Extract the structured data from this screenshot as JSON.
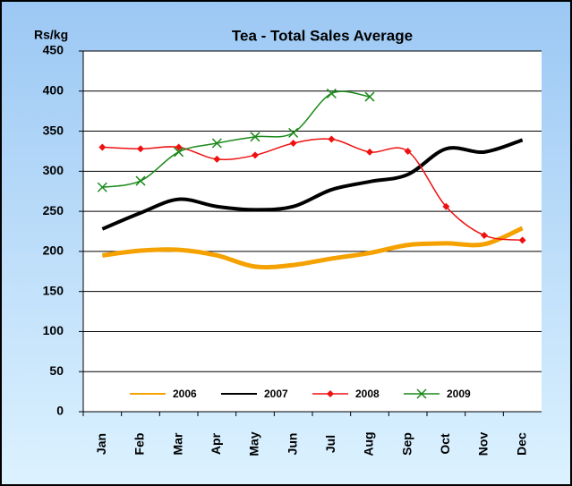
{
  "chart_data": {
    "type": "line",
    "title": "Tea - Total Sales Average",
    "y_label": "Rs/kg",
    "categories": [
      "Jan",
      "Feb",
      "Mar",
      "Apr",
      "May",
      "Jun",
      "Jul",
      "Aug",
      "Sep",
      "Oct",
      "Nov",
      "Dec"
    ],
    "series": [
      {
        "name": "2006",
        "color": "#f5a100",
        "values": [
          195,
          201,
          202,
          195,
          181,
          183,
          191,
          198,
          208,
          210,
          209,
          229
        ]
      },
      {
        "name": "2007",
        "color": "#000000",
        "values": [
          228,
          248,
          265,
          256,
          252,
          256,
          277,
          287,
          296,
          328,
          324,
          339
        ]
      },
      {
        "name": "2008",
        "color": "#ee1111",
        "values": [
          330,
          328,
          330,
          315,
          320,
          335,
          340,
          324,
          325,
          256,
          220,
          214
        ]
      },
      {
        "name": "2009",
        "color": "#1a8a1a",
        "values": [
          280,
          288,
          324,
          335,
          343,
          348,
          397,
          393,
          null,
          null,
          null,
          null
        ]
      }
    ],
    "ylim": [
      0,
      450
    ],
    "yticks": [
      0,
      50,
      100,
      150,
      200,
      250,
      300,
      350,
      400,
      450
    ],
    "grid": true,
    "smooth": true,
    "legend": "bottom"
  }
}
